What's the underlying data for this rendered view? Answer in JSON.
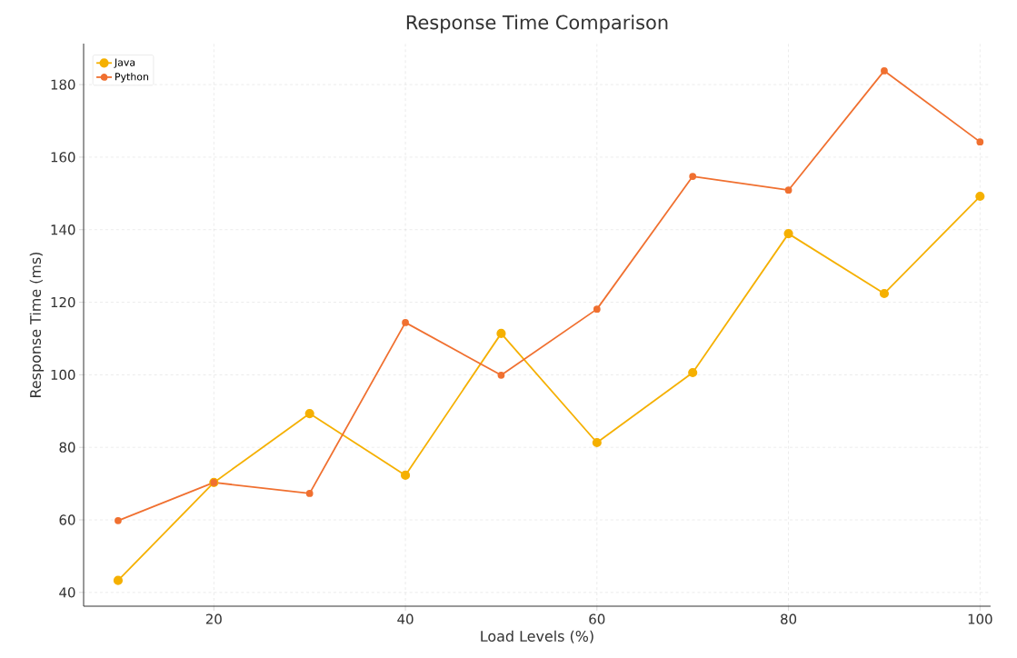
{
  "chart_data": {
    "type": "line",
    "title": "Response Time Comparison",
    "xlabel": "Load Levels (%)",
    "ylabel": "Response Time (ms)",
    "x": [
      10,
      20,
      30,
      40,
      50,
      60,
      70,
      80,
      90,
      100
    ],
    "series": [
      {
        "name": "Java",
        "color": "#f5b000",
        "values": [
          43.3,
          70.3,
          89.3,
          72.3,
          111.4,
          81.3,
          100.6,
          138.9,
          122.4,
          149.2
        ]
      },
      {
        "name": "Python",
        "color": "#f07030",
        "values": [
          59.8,
          70.3,
          67.3,
          114.4,
          99.9,
          118.1,
          154.7,
          150.9,
          183.8,
          164.2
        ]
      }
    ],
    "xlim": [
      6.4,
      101.1
    ],
    "ylim": [
      36.2,
      191.3
    ],
    "xticks": [
      20,
      40,
      60,
      80,
      100
    ],
    "yticks": [
      40,
      60,
      80,
      100,
      120,
      140,
      160,
      180
    ],
    "grid": true,
    "legend": "top left",
    "marker": "circle",
    "line_style": "solid"
  }
}
